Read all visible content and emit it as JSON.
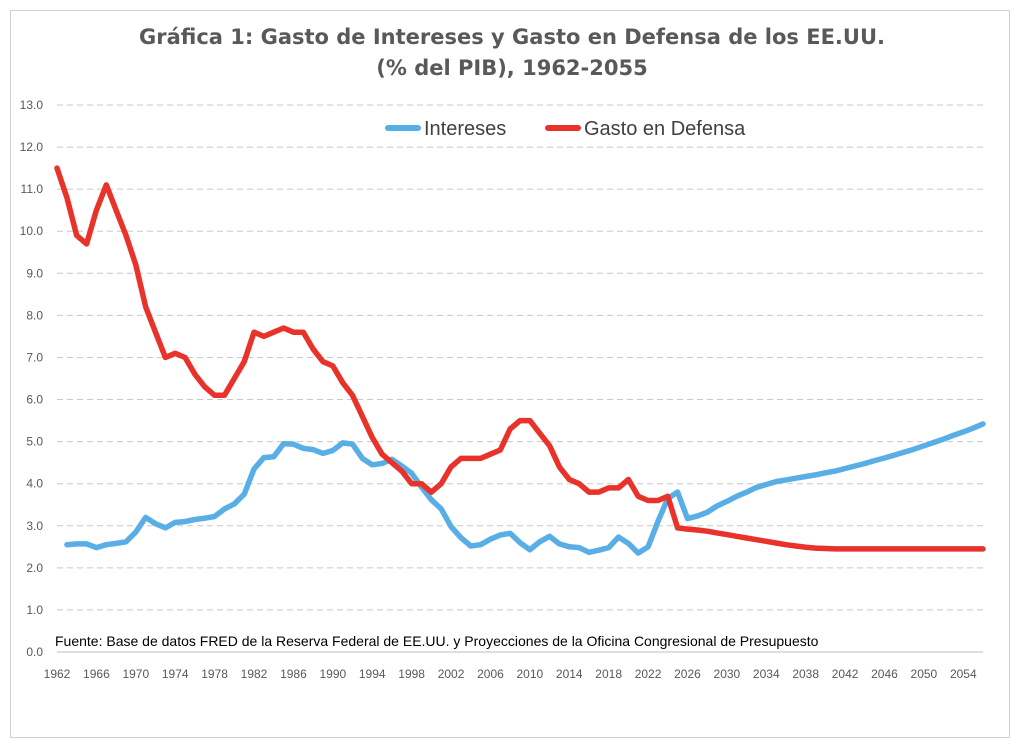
{
  "chart_data": {
    "type": "line",
    "title": "Gráfica 1: Gasto de Intereses y Gasto en Defensa de los EE.UU.",
    "subtitle": "(% del PIB), 1962-2055",
    "source": "Fuente: Base de datos FRED de la Reserva Federal de EE.UU. y Proyecciones de la Oficina Congresional de Presupuesto",
    "ylim": [
      0,
      13
    ],
    "y_ticks": [
      "0.0",
      "1.0",
      "2.0",
      "3.0",
      "4.0",
      "5.0",
      "6.0",
      "7.0",
      "8.0",
      "9.0",
      "10.0",
      "11.0",
      "12.0",
      "13.0"
    ],
    "x_ticks": [
      "1962",
      "1966",
      "1970",
      "1974",
      "1978",
      "1982",
      "1986",
      "1990",
      "1994",
      "1998",
      "2002",
      "2006",
      "2010",
      "2014",
      "2018",
      "2022",
      "2026",
      "2030",
      "2034",
      "2038",
      "2042",
      "2046",
      "2050",
      "2054"
    ],
    "xlim": [
      1962,
      2056
    ],
    "grid": true,
    "legend_position": "top-center",
    "colors": {
      "Intereses": "#5aaee6",
      "Gasto en Defensa": "#e8322a"
    },
    "series": [
      {
        "name": "Intereses",
        "x": [
          1963,
          1964,
          1965,
          1966,
          1967,
          1968,
          1969,
          1970,
          1971,
          1972,
          1973,
          1974,
          1975,
          1976,
          1977,
          1978,
          1979,
          1980,
          1981,
          1982,
          1983,
          1984,
          1985,
          1986,
          1987,
          1988,
          1989,
          1990,
          1991,
          1992,
          1993,
          1994,
          1995,
          1996,
          1997,
          1998,
          1999,
          2000,
          2001,
          2002,
          2003,
          2004,
          2005,
          2006,
          2007,
          2008,
          2009,
          2010,
          2011,
          2012,
          2013,
          2014,
          2015,
          2016,
          2017,
          2018,
          2019,
          2020,
          2021,
          2022,
          2023,
          2024,
          2025,
          2026,
          2027,
          2028,
          2029,
          2030,
          2031,
          2032,
          2033,
          2034,
          2035,
          2036,
          2037,
          2038,
          2039,
          2040,
          2041,
          2042,
          2043,
          2044,
          2045,
          2046,
          2047,
          2048,
          2049,
          2050,
          2051,
          2052,
          2053,
          2054,
          2055,
          2056
        ],
        "values": [
          2.55,
          2.57,
          2.57,
          2.48,
          2.55,
          2.58,
          2.62,
          2.85,
          3.2,
          3.05,
          2.95,
          3.08,
          3.1,
          3.15,
          3.18,
          3.22,
          3.4,
          3.52,
          3.75,
          4.35,
          4.62,
          4.64,
          4.95,
          4.94,
          4.84,
          4.81,
          4.72,
          4.79,
          4.97,
          4.94,
          4.6,
          4.45,
          4.48,
          4.58,
          4.42,
          4.25,
          3.92,
          3.62,
          3.4,
          2.98,
          2.72,
          2.52,
          2.55,
          2.68,
          2.78,
          2.82,
          2.6,
          2.43,
          2.62,
          2.75,
          2.57,
          2.5,
          2.48,
          2.37,
          2.42,
          2.48,
          2.73,
          2.58,
          2.35,
          2.5,
          3.1,
          3.65,
          3.8,
          3.17,
          3.23,
          3.32,
          3.47,
          3.58,
          3.7,
          3.8,
          3.91,
          3.98,
          4.05,
          4.09,
          4.13,
          4.17,
          4.21,
          4.26,
          4.3,
          4.36,
          4.42,
          4.48,
          4.55,
          4.61,
          4.68,
          4.75,
          4.82,
          4.9,
          4.98,
          5.06,
          5.15,
          5.23,
          5.32,
          5.42
        ]
      },
      {
        "name": "Gasto en Defensa",
        "x": [
          1962,
          1963,
          1964,
          1965,
          1966,
          1967,
          1968,
          1969,
          1970,
          1971,
          1972,
          1973,
          1974,
          1975,
          1976,
          1977,
          1978,
          1979,
          1980,
          1981,
          1982,
          1983,
          1984,
          1985,
          1986,
          1987,
          1988,
          1989,
          1990,
          1991,
          1992,
          1993,
          1994,
          1995,
          1996,
          1997,
          1998,
          1999,
          2000,
          2001,
          2002,
          2003,
          2004,
          2005,
          2006,
          2007,
          2008,
          2009,
          2010,
          2011,
          2012,
          2013,
          2014,
          2015,
          2016,
          2017,
          2018,
          2019,
          2020,
          2021,
          2022,
          2023,
          2024,
          2025,
          2026,
          2027,
          2028,
          2029,
          2030,
          2031,
          2032,
          2033,
          2034,
          2035,
          2036,
          2037,
          2038,
          2039,
          2040,
          2041,
          2042,
          2043,
          2044,
          2045,
          2046,
          2047,
          2048,
          2049,
          2050,
          2051,
          2052,
          2053,
          2054,
          2055,
          2056
        ],
        "values": [
          11.5,
          10.8,
          9.9,
          9.7,
          10.5,
          11.1,
          10.5,
          9.9,
          9.2,
          8.2,
          7.6,
          7.0,
          7.1,
          7.0,
          6.6,
          6.3,
          6.1,
          6.1,
          6.5,
          6.9,
          7.6,
          7.5,
          7.6,
          7.7,
          7.6,
          7.6,
          7.2,
          6.9,
          6.8,
          6.4,
          6.1,
          5.6,
          5.1,
          4.7,
          4.5,
          4.3,
          4.0,
          4.0,
          3.8,
          4.0,
          4.4,
          4.6,
          4.6,
          4.6,
          4.7,
          4.8,
          5.3,
          5.5,
          5.5,
          5.2,
          4.9,
          4.4,
          4.1,
          4.0,
          3.8,
          3.8,
          3.9,
          3.9,
          4.1,
          3.7,
          3.6,
          3.6,
          3.7,
          2.95,
          2.92,
          2.9,
          2.87,
          2.83,
          2.79,
          2.75,
          2.71,
          2.67,
          2.63,
          2.59,
          2.55,
          2.52,
          2.49,
          2.47,
          2.46,
          2.45,
          2.45,
          2.45,
          2.45,
          2.45,
          2.45,
          2.45,
          2.45,
          2.45,
          2.45,
          2.45,
          2.45,
          2.45,
          2.45,
          2.45,
          2.45
        ]
      }
    ]
  }
}
